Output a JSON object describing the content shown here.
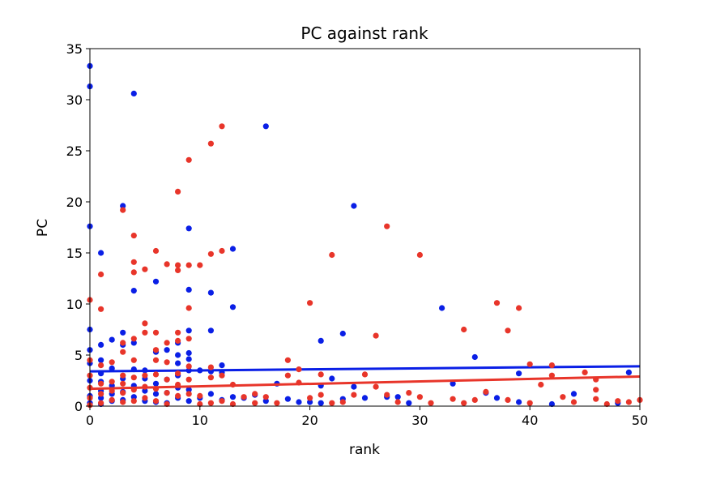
{
  "chart_data": {
    "type": "scatter",
    "title": "PC against rank",
    "xlabel": "rank",
    "ylabel": "PC",
    "xlim": [
      0,
      50
    ],
    "ylim": [
      0,
      35
    ],
    "xticks": [
      "0",
      "10",
      "20",
      "30",
      "40",
      "50"
    ],
    "yticks": [
      "0",
      "5",
      "10",
      "15",
      "20",
      "25",
      "30",
      "35"
    ],
    "grid": false,
    "legend": "none",
    "series": [
      {
        "color": "#0a1fe6",
        "points": [
          [
            0,
            33.3
          ],
          [
            0,
            31.3
          ],
          [
            0,
            17.6
          ],
          [
            0,
            7.5
          ],
          [
            0,
            5.5
          ],
          [
            0,
            4.2
          ],
          [
            0,
            2.5
          ],
          [
            0,
            1.0
          ],
          [
            0,
            0.3
          ],
          [
            1,
            15.0
          ],
          [
            1,
            6.0
          ],
          [
            1,
            4.5
          ],
          [
            1,
            3.2
          ],
          [
            1,
            2.4
          ],
          [
            1,
            1.5
          ],
          [
            1,
            0.8
          ],
          [
            1,
            0.2
          ],
          [
            2,
            6.5
          ],
          [
            2,
            3.7
          ],
          [
            2,
            2.0
          ],
          [
            2,
            1.2
          ],
          [
            2,
            0.5
          ],
          [
            3,
            19.6
          ],
          [
            3,
            7.2
          ],
          [
            3,
            6.0
          ],
          [
            3,
            2.7
          ],
          [
            3,
            1.4
          ],
          [
            3,
            0.6
          ],
          [
            4,
            30.6
          ],
          [
            4,
            11.3
          ],
          [
            4,
            6.2
          ],
          [
            4,
            3.6
          ],
          [
            4,
            2.0
          ],
          [
            4,
            0.9
          ],
          [
            5,
            3.5
          ],
          [
            5,
            2.7
          ],
          [
            5,
            1.5
          ],
          [
            5,
            0.5
          ],
          [
            6,
            12.2
          ],
          [
            6,
            5.3
          ],
          [
            6,
            2.2
          ],
          [
            6,
            1.2
          ],
          [
            6,
            0.4
          ],
          [
            7,
            5.5
          ],
          [
            7,
            2.6
          ],
          [
            7,
            1.3
          ],
          [
            7,
            0.3
          ],
          [
            8,
            6.2
          ],
          [
            8,
            5.0
          ],
          [
            8,
            4.2
          ],
          [
            8,
            3.0
          ],
          [
            8,
            1.8
          ],
          [
            8,
            0.8
          ],
          [
            9,
            17.4
          ],
          [
            9,
            11.4
          ],
          [
            9,
            7.4
          ],
          [
            9,
            5.2
          ],
          [
            9,
            4.6
          ],
          [
            9,
            3.5
          ],
          [
            9,
            1.6
          ],
          [
            9,
            0.5
          ],
          [
            10,
            3.5
          ],
          [
            10,
            0.8
          ],
          [
            11,
            11.1
          ],
          [
            11,
            7.4
          ],
          [
            11,
            3.4
          ],
          [
            11,
            1.2
          ],
          [
            12,
            4.0
          ],
          [
            12,
            3.3
          ],
          [
            12,
            0.6
          ],
          [
            13,
            15.4
          ],
          [
            13,
            9.7
          ],
          [
            13,
            0.9
          ],
          [
            14,
            0.8
          ],
          [
            15,
            1.1
          ],
          [
            16,
            27.4
          ],
          [
            16,
            0.5
          ],
          [
            17,
            2.2
          ],
          [
            18,
            0.7
          ],
          [
            19,
            0.4
          ],
          [
            20,
            0.4
          ],
          [
            21,
            6.4
          ],
          [
            21,
            2.0
          ],
          [
            21,
            0.3
          ],
          [
            22,
            2.7
          ],
          [
            23,
            7.1
          ],
          [
            23,
            0.7
          ],
          [
            24,
            19.6
          ],
          [
            24,
            1.9
          ],
          [
            25,
            0.8
          ],
          [
            27,
            0.9
          ],
          [
            28,
            0.9
          ],
          [
            29,
            0.3
          ],
          [
            32,
            9.6
          ],
          [
            33,
            2.2
          ],
          [
            35,
            4.8
          ],
          [
            36,
            1.3
          ],
          [
            37,
            0.8
          ],
          [
            39,
            3.2
          ],
          [
            39,
            0.4
          ],
          [
            42,
            0.2
          ],
          [
            44,
            1.2
          ],
          [
            48,
            0.3
          ],
          [
            49,
            3.3
          ]
        ],
        "trend": {
          "x": [
            0,
            50
          ],
          "y": [
            3.4,
            3.9
          ]
        }
      },
      {
        "color": "#e8352a",
        "points": [
          [
            0,
            10.4
          ],
          [
            0,
            4.5
          ],
          [
            0,
            3.0
          ],
          [
            0,
            1.8
          ],
          [
            0,
            0.8
          ],
          [
            0,
            0.1
          ],
          [
            1,
            12.9
          ],
          [
            1,
            9.5
          ],
          [
            1,
            4.0
          ],
          [
            1,
            2.2
          ],
          [
            1,
            1.2
          ],
          [
            1,
            0.3
          ],
          [
            2,
            4.3
          ],
          [
            2,
            2.4
          ],
          [
            2,
            1.5
          ],
          [
            2,
            0.6
          ],
          [
            3,
            19.2
          ],
          [
            3,
            6.2
          ],
          [
            3,
            5.3
          ],
          [
            3,
            3.0
          ],
          [
            3,
            2.2
          ],
          [
            3,
            1.3
          ],
          [
            3,
            0.4
          ],
          [
            4,
            16.7
          ],
          [
            4,
            14.1
          ],
          [
            4,
            13.1
          ],
          [
            4,
            6.6
          ],
          [
            4,
            4.5
          ],
          [
            4,
            2.8
          ],
          [
            4,
            1.6
          ],
          [
            4,
            0.5
          ],
          [
            5,
            13.4
          ],
          [
            5,
            8.1
          ],
          [
            5,
            7.2
          ],
          [
            5,
            3.0
          ],
          [
            5,
            1.9
          ],
          [
            5,
            0.8
          ],
          [
            6,
            15.2
          ],
          [
            6,
            7.2
          ],
          [
            6,
            5.5
          ],
          [
            6,
            4.5
          ],
          [
            6,
            3.1
          ],
          [
            6,
            1.7
          ],
          [
            6,
            0.5
          ],
          [
            7,
            13.9
          ],
          [
            7,
            6.2
          ],
          [
            7,
            4.3
          ],
          [
            7,
            2.6
          ],
          [
            7,
            1.3
          ],
          [
            7,
            0.2
          ],
          [
            8,
            21.0
          ],
          [
            8,
            13.8
          ],
          [
            8,
            13.3
          ],
          [
            8,
            7.2
          ],
          [
            8,
            6.4
          ],
          [
            8,
            3.2
          ],
          [
            8,
            2.1
          ],
          [
            8,
            1.0
          ],
          [
            9,
            24.1
          ],
          [
            9,
            13.8
          ],
          [
            9,
            9.6
          ],
          [
            9,
            6.6
          ],
          [
            9,
            3.9
          ],
          [
            9,
            2.6
          ],
          [
            9,
            1.2
          ],
          [
            10,
            13.8
          ],
          [
            10,
            1.0
          ],
          [
            10,
            0.2
          ],
          [
            11,
            25.7
          ],
          [
            11,
            14.9
          ],
          [
            11,
            3.8
          ],
          [
            11,
            2.8
          ],
          [
            11,
            0.3
          ],
          [
            12,
            27.4
          ],
          [
            12,
            15.2
          ],
          [
            12,
            3.0
          ],
          [
            12,
            0.5
          ],
          [
            13,
            2.1
          ],
          [
            13,
            0.2
          ],
          [
            14,
            0.9
          ],
          [
            15,
            1.2
          ],
          [
            15,
            0.3
          ],
          [
            16,
            0.9
          ],
          [
            17,
            0.3
          ],
          [
            18,
            4.5
          ],
          [
            18,
            3.0
          ],
          [
            19,
            2.3
          ],
          [
            19,
            3.6
          ],
          [
            20,
            10.1
          ],
          [
            20,
            0.8
          ],
          [
            21,
            3.1
          ],
          [
            21,
            1.1
          ],
          [
            22,
            14.8
          ],
          [
            22,
            0.3
          ],
          [
            23,
            0.4
          ],
          [
            24,
            1.1
          ],
          [
            25,
            3.1
          ],
          [
            26,
            6.9
          ],
          [
            26,
            1.9
          ],
          [
            27,
            17.6
          ],
          [
            27,
            1.1
          ],
          [
            28,
            0.4
          ],
          [
            29,
            1.3
          ],
          [
            30,
            14.8
          ],
          [
            30,
            0.9
          ],
          [
            31,
            0.3
          ],
          [
            33,
            0.7
          ],
          [
            34,
            7.5
          ],
          [
            34,
            0.3
          ],
          [
            35,
            0.6
          ],
          [
            36,
            1.4
          ],
          [
            37,
            10.1
          ],
          [
            38,
            7.4
          ],
          [
            38,
            0.6
          ],
          [
            39,
            9.6
          ],
          [
            40,
            4.1
          ],
          [
            40,
            0.3
          ],
          [
            41,
            2.1
          ],
          [
            42,
            4.0
          ],
          [
            42,
            3.0
          ],
          [
            43,
            0.9
          ],
          [
            44,
            0.4
          ],
          [
            45,
            3.3
          ],
          [
            46,
            2.6
          ],
          [
            46,
            1.6
          ],
          [
            46,
            0.7
          ],
          [
            47,
            0.2
          ],
          [
            48,
            0.5
          ],
          [
            49,
            0.4
          ],
          [
            50,
            0.6
          ]
        ],
        "trend": {
          "x": [
            0,
            50
          ],
          "y": [
            1.7,
            2.9
          ]
        }
      }
    ]
  }
}
